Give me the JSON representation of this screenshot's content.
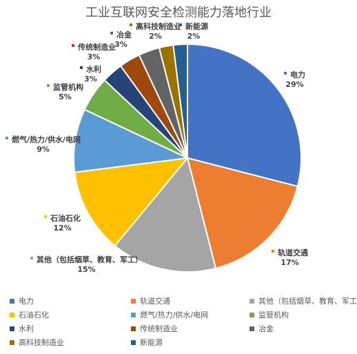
{
  "chart_data": {
    "type": "pie",
    "title": "工业互联网安全检测能力落地行业",
    "slices": [
      {
        "label": "电力",
        "pct_label": "29%",
        "value": 29,
        "color": "#4472C4"
      },
      {
        "label": "轨道交通",
        "pct_label": "17%",
        "value": 17,
        "color": "#ED7D31"
      },
      {
        "label": "其他（包括烟草、教育、军工）",
        "pct_label": "15%",
        "value": 15,
        "color": "#A5A5A5"
      },
      {
        "label": "石油石化",
        "pct_label": "12%",
        "value": 12,
        "color": "#FFC000"
      },
      {
        "label": "燃气/热力/供水/电网",
        "pct_label": "9%",
        "value": 9,
        "color": "#5B9BD5"
      },
      {
        "label": "监管机构",
        "pct_label": "5%",
        "value": 5,
        "color": "#70AD47"
      },
      {
        "label": "水利",
        "pct_label": "3%",
        "value": 3,
        "color": "#264478"
      },
      {
        "label": "传统制造业",
        "pct_label": "3%",
        "value": 3,
        "color": "#9E480E"
      },
      {
        "label": "冶金",
        "pct_label": "3%",
        "value": 3,
        "color": "#636363"
      },
      {
        "label": "高科技制造业",
        "pct_label": "2%",
        "value": 2,
        "color": "#997300"
      },
      {
        "label": "新能源",
        "pct_label": "2%",
        "value": 2,
        "color": "#255E91"
      }
    ],
    "legend_placement": "bottom"
  }
}
